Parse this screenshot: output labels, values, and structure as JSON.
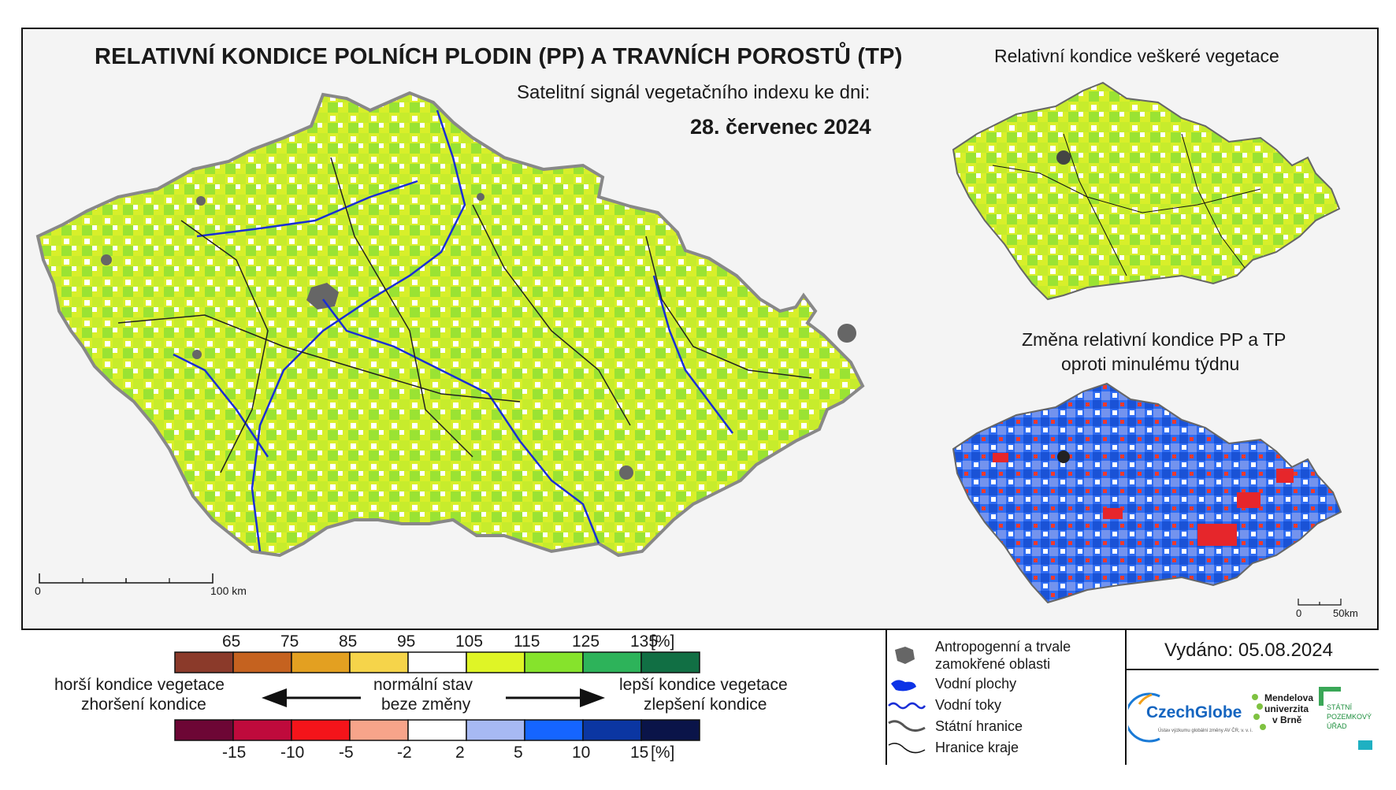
{
  "title": "RELATIVNÍ KONDICE POLNÍCH PLODIN (PP) A TRAVNÍCH POROSTŮ (TP)",
  "subtitle": "Satelitní signál vegetačního indexu ke dni:",
  "date": "28. červenec 2024",
  "inset1_title": "Relativní kondice veškeré vegetace",
  "inset2_title_line1": "Změna relativní kondice PP a TP",
  "inset2_title_line2": "oproti minulému týdnu",
  "scale_main": {
    "start": "0",
    "end": "100 km"
  },
  "scale_inset": {
    "start": "0",
    "end": "50km"
  },
  "condition_legend": {
    "labels": [
      "65",
      "75",
      "85",
      "95",
      "105",
      "115",
      "125",
      "135",
      "[%]"
    ],
    "colors": [
      "#8b3a2a",
      "#c5621f",
      "#e3a021",
      "#f6d44a",
      "#ffffff",
      "#dff526",
      "#86e32c",
      "#2db35a",
      "#116f44"
    ]
  },
  "change_legend": {
    "labels": [
      "-15",
      "-10",
      "-5",
      "-2",
      "2",
      "5",
      "10",
      "15",
      "[%]"
    ],
    "colors": [
      "#6d0635",
      "#bf0a3c",
      "#f4141a",
      "#f7a48a",
      "#ffffff",
      "#a7b9f3",
      "#1565ff",
      "#0b36a2",
      "#0a1449"
    ]
  },
  "middle_text": {
    "left_line1": "horší kondice vegetace",
    "left_line2": "zhoršení kondice",
    "center_line1": "normální stav",
    "center_line2": "beze změny",
    "right_line1": "lepší kondice vegetace",
    "right_line2": "zlepšení kondice"
  },
  "symbol_legend": [
    {
      "label": "Antropogenní a trvale zamokřené oblasti",
      "icon": "urban-area-icon"
    },
    {
      "label": "Vodní plochy",
      "icon": "water-body-icon"
    },
    {
      "label": "Vodní toky",
      "icon": "river-icon"
    },
    {
      "label": "Státní hranice",
      "icon": "state-border-icon"
    },
    {
      "label": "Hranice kraje",
      "icon": "region-border-icon"
    }
  ],
  "issued": "Vydáno: 05.08.2024",
  "logos": {
    "czechglobe": "CzechGlobe",
    "czechglobe_sub": "Ústav výzkumu globální změny AV ČR, v. v. i.",
    "mendelu_line1": "Mendelova",
    "mendelu_line2": "univerzita",
    "mendelu_line3": "v Brně",
    "spu_line1": "STÁTNÍ",
    "spu_line2": "POZEMKOVÝ",
    "spu_line3": "ÚŘAD"
  }
}
